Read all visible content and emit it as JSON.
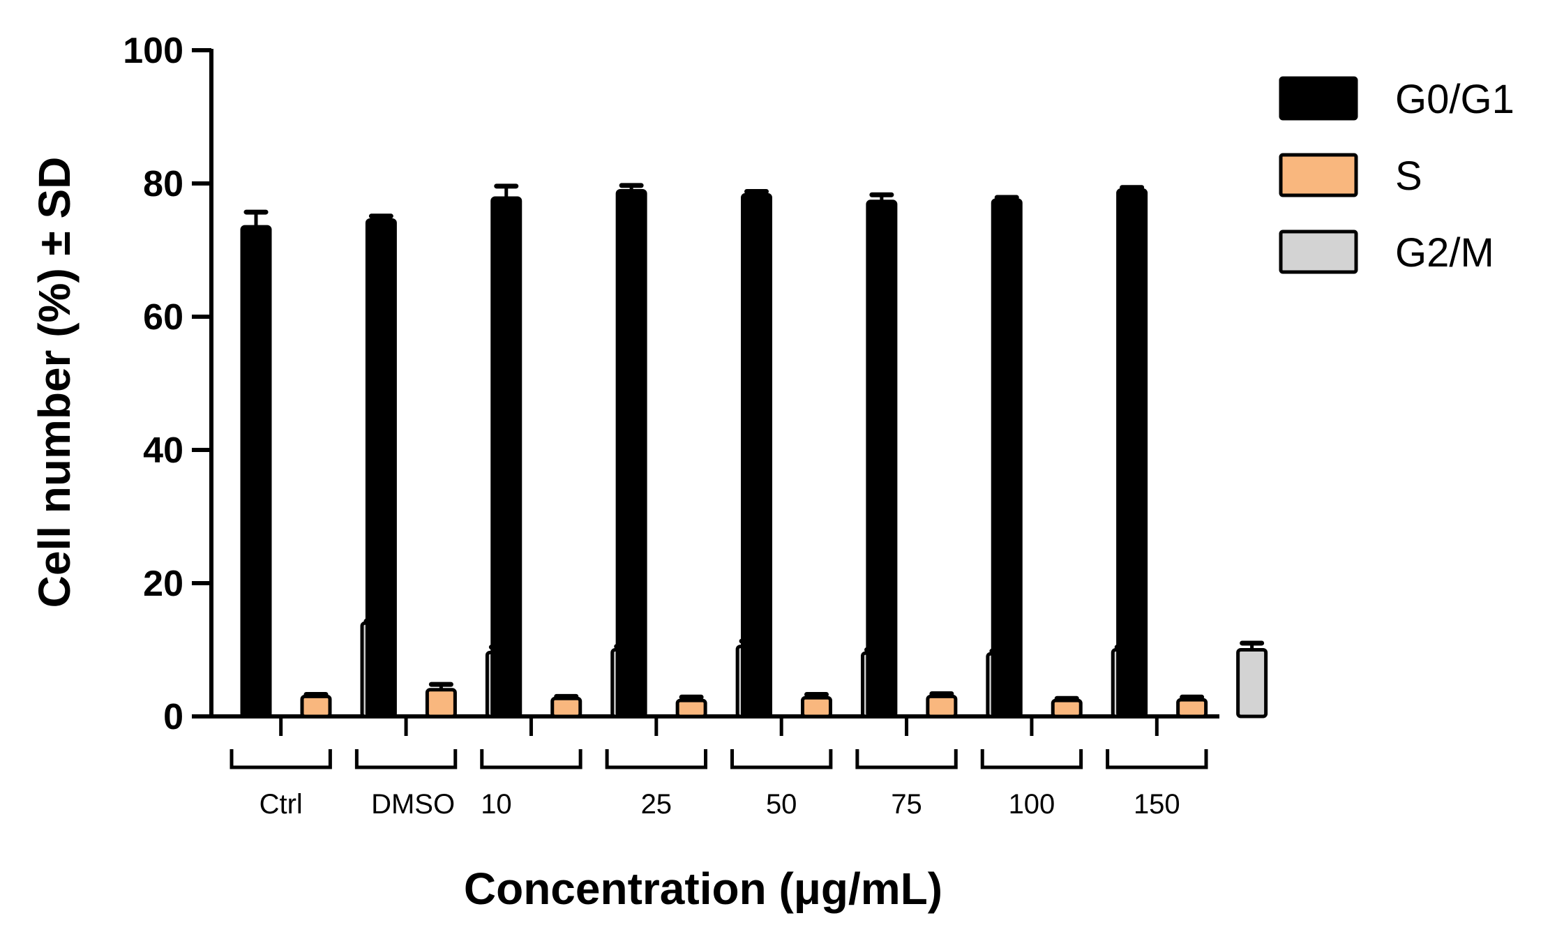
{
  "chart_data": {
    "type": "bar",
    "title": "",
    "xlabel": "Concentration (μg/mL)",
    "ylabel": "Cell number (%) ± SD",
    "ylim": [
      0,
      100
    ],
    "yticks": [
      "0",
      "20",
      "40",
      "60",
      "80",
      "100"
    ],
    "categories": [
      "Ctrl",
      "DMSO",
      "10",
      "25",
      "50",
      "75",
      "100",
      "150"
    ],
    "legend_position": "top-right",
    "grid": false,
    "series": [
      {
        "name": "G0/G1",
        "color": "#000000",
        "values": [
          73.5,
          74.5,
          77.8,
          78.9,
          78.3,
          77.3,
          77.5,
          79.0
        ],
        "errors": [
          2.2,
          0.6,
          1.8,
          0.8,
          0.5,
          1.0,
          0.4,
          0.4
        ]
      },
      {
        "name": "S",
        "color": "#f9b77e",
        "values": [
          3.0,
          4.0,
          2.7,
          2.4,
          2.8,
          3.0,
          2.4,
          2.5
        ],
        "errors": [
          0.3,
          0.8,
          0.3,
          0.5,
          0.5,
          0.4,
          0.3,
          0.4
        ]
      },
      {
        "name": "G2/M",
        "color": "#d3d3d3",
        "values": [
          14.0,
          9.6,
          10.0,
          10.5,
          9.5,
          9.4,
          10.0,
          10.0
        ],
        "errors": [
          0.3,
          0.8,
          0.5,
          0.8,
          0.5,
          0.4,
          0.4,
          1.0
        ]
      }
    ]
  }
}
